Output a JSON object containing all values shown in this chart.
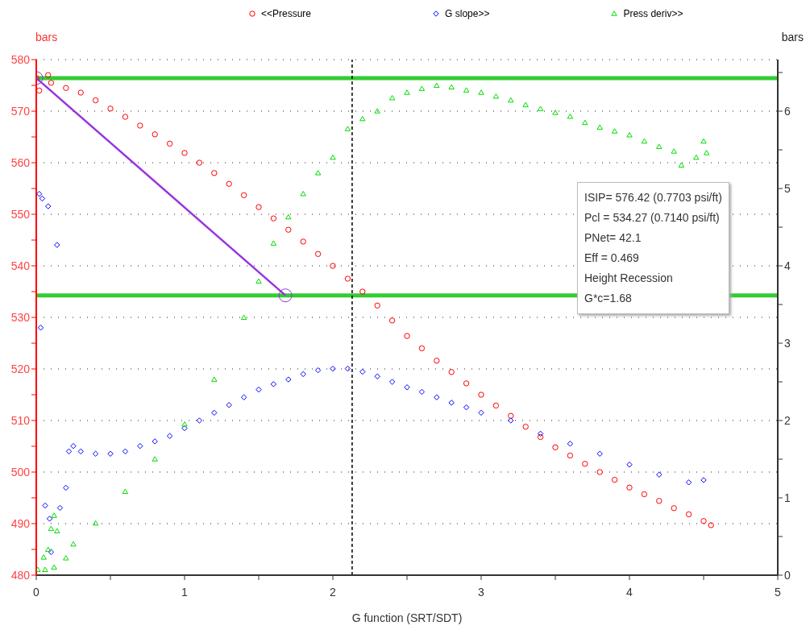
{
  "chart_data": {
    "type": "scatter",
    "xlabel": "G function (SRT/SDT)",
    "ylabel": "bars",
    "y2label": "bars",
    "xlim": [
      0,
      5
    ],
    "xticks": [
      0,
      {
        "value": 0.5,
        "label": null
      },
      1,
      {
        "value": 1.5,
        "label": null
      },
      2,
      {
        "value": 2.5,
        "label": null
      },
      3,
      {
        "value": 3.5,
        "label": null
      },
      4,
      {
        "value": 4.5,
        "label": null
      },
      5
    ],
    "ylim": [
      480,
      580
    ],
    "yticks": [
      480,
      {
        "value": 485,
        "label": null
      },
      490,
      {
        "value": 495,
        "label": null
      },
      500,
      {
        "value": 505,
        "label": null
      },
      510,
      {
        "value": 515,
        "label": null
      },
      520,
      {
        "value": 525,
        "label": null
      },
      530,
      {
        "value": 535,
        "label": null
      },
      540,
      {
        "value": 545,
        "label": null
      },
      550,
      {
        "value": 555,
        "label": null
      },
      560,
      {
        "value": 565,
        "label": null
      },
      570,
      {
        "value": 575,
        "label": null
      },
      580
    ],
    "y2lim": [
      0,
      6.6667
    ],
    "y2ticks": [
      0,
      {
        "value": 0.5,
        "label": null
      },
      1,
      {
        "value": 1.5,
        "label": null
      },
      2,
      {
        "value": 2.5,
        "label": null
      },
      3,
      {
        "value": 3.5,
        "label": null
      },
      4,
      {
        "value": 4.5,
        "label": null
      },
      5,
      {
        "value": 5.5,
        "label": null
      },
      6,
      {
        "value": 6.5,
        "label": null
      }
    ],
    "grid": "y",
    "legend": "top",
    "series": [
      {
        "name": "<<Pressure",
        "color": "#ff0000",
        "marker": "circle",
        "x": [
          0,
          0.02,
          0.08,
          0.1,
          0.2,
          0.3,
          0.4,
          0.5,
          0.6,
          0.7,
          0.8,
          0.9,
          1.0,
          1.1,
          1.2,
          1.3,
          1.4,
          1.5,
          1.6,
          1.7,
          1.8,
          1.9,
          2.0,
          2.1,
          2.2,
          2.3,
          2.4,
          2.5,
          2.6,
          2.7,
          2.8,
          2.9,
          3.0,
          3.1,
          3.2,
          3.3,
          3.4,
          3.5,
          3.6,
          3.7,
          3.8,
          3.9,
          4.0,
          4.1,
          4.2,
          4.3,
          4.4,
          4.5,
          4.55
        ],
        "values": [
          576.4,
          574,
          577,
          575.5,
          574.5,
          573.6,
          572.1,
          570.5,
          568.9,
          567.2,
          565.5,
          563.7,
          561.9,
          560.0,
          558.0,
          555.9,
          553.7,
          551.4,
          549.2,
          547.0,
          544.7,
          542.3,
          540.0,
          537.5,
          535.0,
          532.3,
          529.4,
          526.4,
          524.0,
          521.6,
          519.4,
          517.2,
          515.0,
          512.9,
          510.9,
          508.8,
          506.8,
          504.8,
          503.2,
          501.6,
          500.0,
          498.5,
          497.0,
          495.7,
          494.4,
          493.0,
          491.8,
          490.5,
          489.7
        ]
      },
      {
        "name": "G slope>>",
        "color": "#0000ff",
        "marker": "diamond",
        "axis": "y2",
        "x": [
          0.02,
          0.03,
          0.04,
          0.06,
          0.08,
          0.09,
          0.1,
          0.14,
          0.16,
          0.2,
          0.22,
          0.25,
          0.3,
          0.4,
          0.5,
          0.6,
          0.7,
          0.8,
          0.9,
          1.0,
          1.1,
          1.2,
          1.3,
          1.4,
          1.5,
          1.6,
          1.7,
          1.8,
          1.9,
          2.0,
          2.1,
          2.2,
          2.3,
          2.4,
          2.5,
          2.6,
          2.7,
          2.8,
          2.9,
          3.0,
          3.2,
          3.4,
          3.6,
          3.8,
          4.0,
          4.2,
          4.4,
          4.5
        ],
        "values": [
          4.93,
          3.2,
          4.87,
          0.9,
          4.77,
          0.73,
          0.3,
          4.27,
          0.87,
          1.13,
          1.6,
          1.67,
          1.6,
          1.57,
          1.57,
          1.6,
          1.67,
          1.73,
          1.8,
          1.9,
          2.0,
          2.1,
          2.2,
          2.3,
          2.4,
          2.47,
          2.53,
          2.6,
          2.65,
          2.67,
          2.67,
          2.63,
          2.57,
          2.5,
          2.43,
          2.37,
          2.3,
          2.23,
          2.17,
          2.1,
          2.0,
          1.83,
          1.7,
          1.57,
          1.43,
          1.3,
          1.2,
          1.23
        ]
      },
      {
        "name": "Press deriv>>",
        "color": "#00dd00",
        "marker": "triangle",
        "axis": "y2",
        "x": [
          0.01,
          0.05,
          0.06,
          0.08,
          0.1,
          0.12,
          0.12,
          0.14,
          0.2,
          0.25,
          0.4,
          0.6,
          0.8,
          1.0,
          1.2,
          1.4,
          1.5,
          1.6,
          1.7,
          1.8,
          1.9,
          2.0,
          2.1,
          2.2,
          2.3,
          2.4,
          2.5,
          2.6,
          2.7,
          2.8,
          2.9,
          3.0,
          3.1,
          3.2,
          3.3,
          3.4,
          3.5,
          3.6,
          3.7,
          3.8,
          3.9,
          4.0,
          4.1,
          4.2,
          4.3,
          4.35,
          4.45,
          4.5,
          4.52
        ],
        "values": [
          0.07,
          0.23,
          0.07,
          0.33,
          0.6,
          0.77,
          0.1,
          0.57,
          0.22,
          0.4,
          0.67,
          1.08,
          1.5,
          1.95,
          2.53,
          3.33,
          3.8,
          4.29,
          4.63,
          4.93,
          5.2,
          5.4,
          5.77,
          5.9,
          6.0,
          6.17,
          6.24,
          6.29,
          6.33,
          6.31,
          6.27,
          6.24,
          6.19,
          6.14,
          6.08,
          6.03,
          5.98,
          5.93,
          5.85,
          5.79,
          5.74,
          5.69,
          5.61,
          5.54,
          5.48,
          5.3,
          5.4,
          5.61,
          5.46
        ]
      },
      {
        "type": "line",
        "color": "#9933dd",
        "marker": "circle",
        "x": [
          0,
          1.68
        ],
        "values": [
          576.42,
          534.27
        ]
      }
    ],
    "ref_lines": [
      {
        "axis": "y",
        "value": 576.42,
        "color": "#33cc33",
        "line_style": "solid"
      },
      {
        "axis": "y",
        "value": 534.27,
        "color": "#33cc33",
        "line_style": "solid"
      },
      {
        "axis": "x",
        "value": 2.13,
        "color": "#000000",
        "line_style": "dashed"
      }
    ],
    "annotations": [
      "ISIP= 576.42 (0.7703 psi/ft)",
      "Pcl = 534.27 (0.7140 psi/ft)",
      "PNet= 42.1",
      "Eff = 0.469",
      "Height Recession",
      "G*c=1.68"
    ]
  }
}
